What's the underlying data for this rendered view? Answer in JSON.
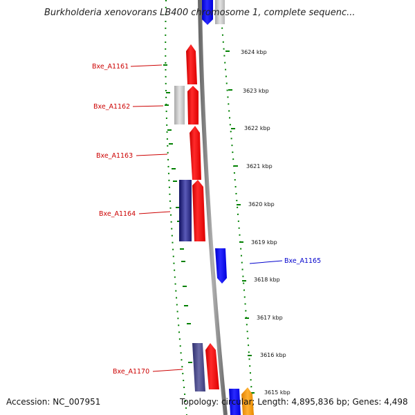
{
  "title": "Burkholderia xenovorans LB400 chromosome 1, complete sequenc...",
  "footer": {
    "accession": "Accession: NC_007951",
    "summary": "Topology: circular; Length: 4,895,836 bp; Genes: 4,498"
  },
  "colors": {
    "forward_gene": "#ff0000",
    "reverse_gene": "#0000ff",
    "dark_gene": "#333399",
    "gray_gene": "#c0c0c0",
    "orange_gene": "#ff9900",
    "tick": "#008000",
    "backbone": "#808080",
    "label_red": "#cc0000",
    "label_blue": "#0000cc"
  },
  "ticks": [
    {
      "label": "3624 kbp"
    },
    {
      "label": "3623 kbp"
    },
    {
      "label": "3622 kbp"
    },
    {
      "label": "3621 kbp"
    },
    {
      "label": "3620 kbp"
    },
    {
      "label": "3619 kbp"
    },
    {
      "label": "3618 kbp"
    },
    {
      "label": "3617 kbp"
    },
    {
      "label": "3616 kbp"
    },
    {
      "label": "3615 kbp"
    }
  ],
  "gene_labels": [
    {
      "text": "Bxe_A1161",
      "color": "#cc0000"
    },
    {
      "text": "Bxe_A1162",
      "color": "#cc0000"
    },
    {
      "text": "Bxe_A1163",
      "color": "#cc0000"
    },
    {
      "text": "Bxe_A1164",
      "color": "#cc0000"
    },
    {
      "text": "Bxe_A1165",
      "color": "#0000cc"
    },
    {
      "text": "Bxe_A1170",
      "color": "#cc0000"
    }
  ]
}
